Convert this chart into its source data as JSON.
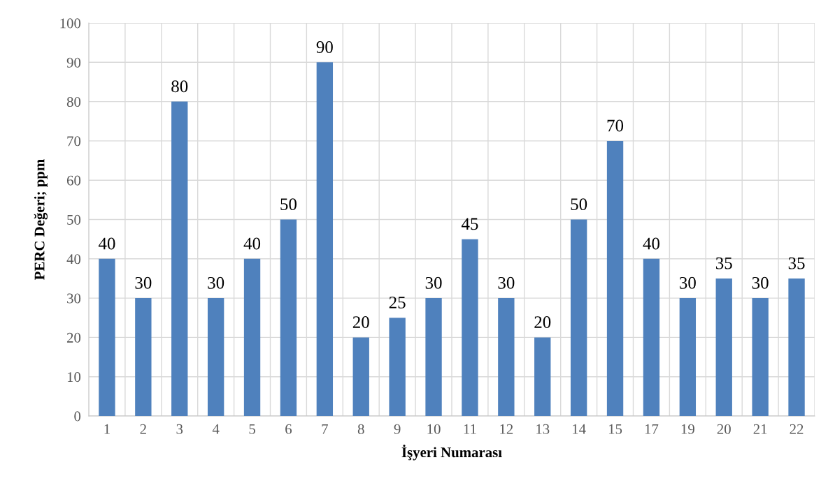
{
  "chart_data": {
    "type": "bar",
    "xlabel": "İşyeri Numarası",
    "ylabel": "PERC Değeri; ppm",
    "categories": [
      "1",
      "2",
      "3",
      "4",
      "5",
      "6",
      "7",
      "8",
      "9",
      "10",
      "11",
      "12",
      "13",
      "14",
      "15",
      "17",
      "19",
      "20",
      "21",
      "22"
    ],
    "values": [
      40,
      30,
      80,
      30,
      40,
      50,
      90,
      20,
      25,
      30,
      45,
      30,
      20,
      50,
      70,
      40,
      30,
      35,
      30,
      35
    ],
    "color": "#4f81bd",
    "ylim": [
      0,
      100
    ],
    "yticks": [
      0,
      10,
      20,
      30,
      40,
      50,
      60,
      70,
      80,
      90,
      100
    ],
    "grid": true,
    "data_labels": true
  }
}
